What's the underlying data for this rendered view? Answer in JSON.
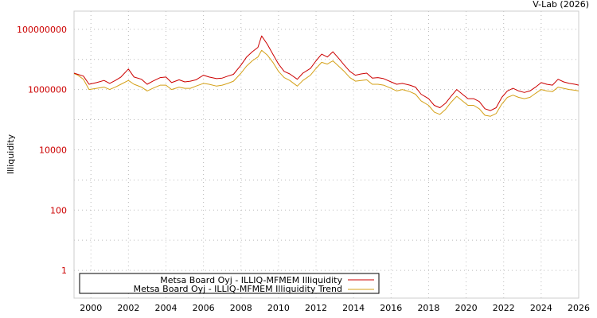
{
  "chart_data": {
    "type": "line",
    "title": "",
    "credit": "V-Lab (2026)",
    "ylabel": "Illiquidity",
    "xlabel": "",
    "yscale": "log",
    "ylim": [
      0.12,
      400000000
    ],
    "xlim": [
      1999.1,
      2026.0
    ],
    "y_ticks": [
      {
        "value": 1,
        "label": "1"
      },
      {
        "value": 100,
        "label": "100"
      },
      {
        "value": 10000,
        "label": "10000"
      },
      {
        "value": 1000000,
        "label": "1000000"
      },
      {
        "value": 100000000,
        "label": "100000000"
      }
    ],
    "x_ticks": [
      {
        "value": 2000,
        "label": "2000"
      },
      {
        "value": 2002,
        "label": "2002"
      },
      {
        "value": 2004,
        "label": "2004"
      },
      {
        "value": 2006,
        "label": "2006"
      },
      {
        "value": 2008,
        "label": "2008"
      },
      {
        "value": 2010,
        "label": "2010"
      },
      {
        "value": 2012,
        "label": "2012"
      },
      {
        "value": 2014,
        "label": "2014"
      },
      {
        "value": 2016,
        "label": "2016"
      },
      {
        "value": 2018,
        "label": "2018"
      },
      {
        "value": 2020,
        "label": "2020"
      },
      {
        "value": 2022,
        "label": "2022"
      },
      {
        "value": 2024,
        "label": "2024"
      },
      {
        "value": 2026,
        "label": "2026"
      }
    ],
    "grid": true,
    "legend_position": "bottom-left",
    "series": [
      {
        "name": "Metsa Board Oyj - ILLIQ-MFMEM Illiquidity",
        "color": "#cc0000",
        "x": [
          1999.1,
          1999.3,
          1999.6,
          1999.9,
          2000.3,
          2000.7,
          2001.0,
          2001.3,
          2001.6,
          2002.0,
          2002.3,
          2002.7,
          2003.0,
          2003.3,
          2003.7,
          2004.0,
          2004.3,
          2004.7,
          2005.0,
          2005.3,
          2005.6,
          2006.0,
          2006.3,
          2006.7,
          2007.0,
          2007.3,
          2007.6,
          2008.0,
          2008.3,
          2008.6,
          2008.9,
          2009.1,
          2009.4,
          2009.7,
          2010.0,
          2010.3,
          2010.6,
          2011.0,
          2011.3,
          2011.7,
          2012.0,
          2012.3,
          2012.6,
          2012.9,
          2013.2,
          2013.5,
          2013.8,
          2014.1,
          2014.4,
          2014.7,
          2015.0,
          2015.3,
          2015.6,
          2016.0,
          2016.3,
          2016.6,
          2017.0,
          2017.3,
          2017.6,
          2018.0,
          2018.3,
          2018.6,
          2018.9,
          2019.2,
          2019.5,
          2019.8,
          2020.1,
          2020.4,
          2020.7,
          2021.0,
          2021.3,
          2021.6,
          2021.9,
          2022.2,
          2022.5,
          2022.8,
          2023.1,
          2023.4,
          2023.7,
          2024.0,
          2024.3,
          2024.6,
          2024.9,
          2025.2,
          2025.5,
          2025.8,
          2026.0
        ],
        "values": [
          3500000,
          3200000,
          2800000,
          1500000,
          1700000,
          2000000,
          1600000,
          2000000,
          2600000,
          4800000,
          2600000,
          2200000,
          1500000,
          1900000,
          2500000,
          2600000,
          1700000,
          2100000,
          1800000,
          1900000,
          2100000,
          3000000,
          2600000,
          2300000,
          2400000,
          2800000,
          3200000,
          6500000,
          12000000,
          18000000,
          25000000,
          60000000,
          32000000,
          15000000,
          7000000,
          4000000,
          3300000,
          2200000,
          3500000,
          5000000,
          9000000,
          15000000,
          12000000,
          18000000,
          11000000,
          6500000,
          4000000,
          3000000,
          3300000,
          3500000,
          2400000,
          2500000,
          2300000,
          1800000,
          1500000,
          1600000,
          1400000,
          1200000,
          700000,
          500000,
          300000,
          250000,
          350000,
          600000,
          1000000,
          700000,
          500000,
          500000,
          400000,
          230000,
          200000,
          250000,
          550000,
          900000,
          1100000,
          900000,
          800000,
          900000,
          1200000,
          1700000,
          1500000,
          1400000,
          2200000,
          1800000,
          1600000,
          1500000,
          1400000
        ]
      },
      {
        "name": "Metsa Board Oyj - ILLIQ-MFMEM Illiquidity Trend",
        "color": "#d4a017",
        "x": [
          1999.1,
          1999.3,
          1999.6,
          1999.9,
          2000.3,
          2000.7,
          2001.0,
          2001.3,
          2001.6,
          2002.0,
          2002.3,
          2002.7,
          2003.0,
          2003.3,
          2003.7,
          2004.0,
          2004.3,
          2004.7,
          2005.0,
          2005.3,
          2005.6,
          2006.0,
          2006.3,
          2006.7,
          2007.0,
          2007.3,
          2007.6,
          2008.0,
          2008.3,
          2008.6,
          2008.9,
          2009.1,
          2009.4,
          2009.7,
          2010.0,
          2010.3,
          2010.6,
          2011.0,
          2011.3,
          2011.7,
          2012.0,
          2012.3,
          2012.6,
          2012.9,
          2013.2,
          2013.5,
          2013.8,
          2014.1,
          2014.4,
          2014.7,
          2015.0,
          2015.3,
          2015.6,
          2016.0,
          2016.3,
          2016.6,
          2017.0,
          2017.3,
          2017.6,
          2018.0,
          2018.3,
          2018.6,
          2018.9,
          2019.2,
          2019.5,
          2019.8,
          2020.1,
          2020.4,
          2020.7,
          2021.0,
          2021.3,
          2021.6,
          2021.9,
          2022.2,
          2022.5,
          2022.8,
          2023.1,
          2023.4,
          2023.7,
          2024.0,
          2024.3,
          2024.6,
          2024.9,
          2025.2,
          2025.5,
          2025.8,
          2026.0
        ],
        "values": [
          3400000,
          3000000,
          2200000,
          1000000,
          1100000,
          1200000,
          1000000,
          1200000,
          1500000,
          2000000,
          1500000,
          1200000,
          900000,
          1100000,
          1400000,
          1400000,
          1000000,
          1200000,
          1100000,
          1100000,
          1300000,
          1600000,
          1500000,
          1300000,
          1400000,
          1600000,
          1900000,
          3500000,
          6000000,
          9000000,
          12000000,
          20000000,
          14000000,
          8000000,
          4000000,
          2500000,
          2000000,
          1300000,
          2000000,
          3000000,
          5000000,
          8000000,
          7000000,
          9000000,
          6000000,
          4000000,
          2500000,
          1900000,
          2000000,
          2100000,
          1500000,
          1500000,
          1400000,
          1100000,
          900000,
          1000000,
          850000,
          700000,
          420000,
          300000,
          180000,
          150000,
          220000,
          380000,
          600000,
          420000,
          300000,
          300000,
          230000,
          140000,
          130000,
          160000,
          330000,
          550000,
          650000,
          550000,
          500000,
          550000,
          750000,
          1000000,
          900000,
          850000,
          1200000,
          1100000,
          1000000,
          950000,
          900000
        ]
      }
    ]
  }
}
